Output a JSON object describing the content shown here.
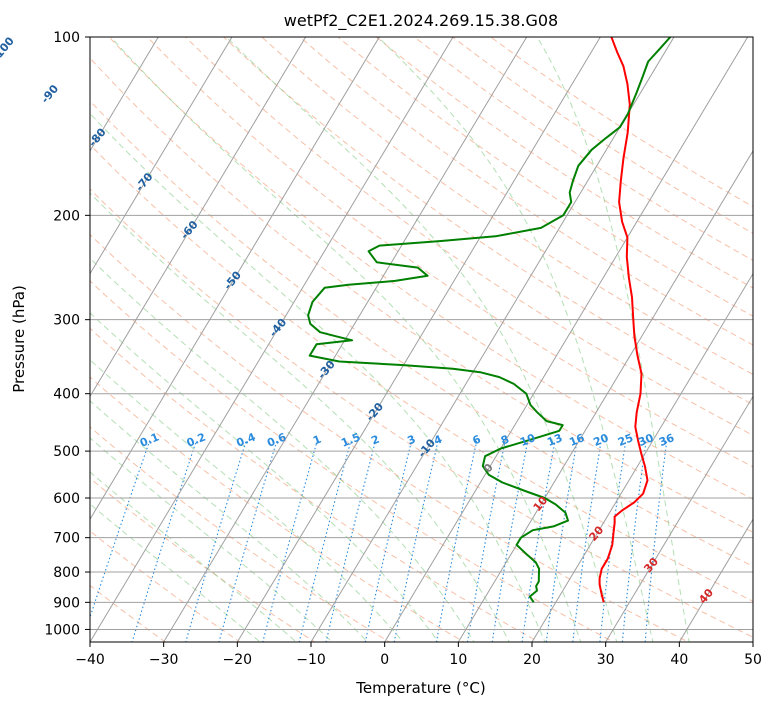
{
  "chart_data": {
    "type": "line",
    "title": "wetPf2_C2E1.2024.269.15.38.G08",
    "xlabel": "Temperature (°C)",
    "ylabel": "Pressure (hPa)",
    "xlim": [
      -40,
      50
    ],
    "ylim": [
      1050,
      100
    ],
    "y_scale": "log",
    "grid": true,
    "x_ticks": [
      "−40",
      "−30",
      "−20",
      "−10",
      "0",
      "10",
      "20",
      "30",
      "40",
      "50"
    ],
    "y_ticks": [
      "100",
      "200",
      "300",
      "400",
      "500",
      "600",
      "700",
      "800",
      "900",
      "1000"
    ],
    "isotherm_labels": [
      "-100",
      "-90",
      "-80",
      "-70",
      "-60",
      "-50",
      "-40",
      "-30",
      "-20",
      "-10",
      "0",
      "10",
      "20",
      "30",
      "40"
    ],
    "mixing_ratio_labels": [
      "0.1",
      "0.2",
      "0.4",
      "0.6",
      "1",
      "1.5",
      "2",
      "3",
      "4",
      "6",
      "8",
      "10",
      "13",
      "16",
      "20",
      "25",
      "30",
      "36"
    ],
    "series": [
      {
        "color": "#ff0000",
        "points": [
          [
            26.5,
            900
          ],
          [
            25.5,
            870
          ],
          [
            24.5,
            840
          ],
          [
            24.0,
            820
          ],
          [
            23.5,
            790
          ],
          [
            23.5,
            760
          ],
          [
            23.0,
            720
          ],
          [
            22.5,
            700
          ],
          [
            22.0,
            680
          ],
          [
            21.5,
            660
          ],
          [
            21.0,
            645
          ],
          [
            21.5,
            630
          ],
          [
            22.5,
            610
          ],
          [
            23.0,
            590
          ],
          [
            22.5,
            560
          ],
          [
            21.0,
            530
          ],
          [
            19.5,
            505
          ],
          [
            18.0,
            480
          ],
          [
            16.5,
            455
          ],
          [
            15.5,
            430
          ],
          [
            14.5,
            400
          ],
          [
            13.0,
            370
          ],
          [
            11.0,
            345
          ],
          [
            9.0,
            320
          ],
          [
            7.5,
            300
          ],
          [
            5.5,
            275
          ],
          [
            3.5,
            255
          ],
          [
            1.5,
            235
          ],
          [
            0.0,
            218
          ],
          [
            -2.0,
            205
          ],
          [
            -4.0,
            190
          ],
          [
            -5.5,
            175
          ],
          [
            -7.0,
            160
          ],
          [
            -8.5,
            145
          ],
          [
            -10.5,
            130
          ],
          [
            -12.5,
            120
          ],
          [
            -14.5,
            112
          ],
          [
            -16.5,
            106
          ],
          [
            -18.5,
            100
          ]
        ]
      },
      {
        "color": "#008000",
        "points": [
          [
            17.0,
            900
          ],
          [
            16.0,
            880
          ],
          [
            16.5,
            860
          ],
          [
            16.0,
            845
          ],
          [
            16.0,
            830
          ],
          [
            15.5,
            810
          ],
          [
            15.0,
            790
          ],
          [
            14.0,
            770
          ],
          [
            12.0,
            745
          ],
          [
            10.0,
            720
          ],
          [
            10.0,
            700
          ],
          [
            11.0,
            680
          ],
          [
            13.5,
            670
          ],
          [
            15.0,
            655
          ],
          [
            14.0,
            635
          ],
          [
            12.0,
            615
          ],
          [
            10.0,
            600
          ],
          [
            7.0,
            585
          ],
          [
            3.0,
            565
          ],
          [
            0.5,
            548
          ],
          [
            -1.0,
            530
          ],
          [
            -1.5,
            510
          ],
          [
            0.0,
            495
          ],
          [
            3.0,
            480
          ],
          [
            6.5,
            462
          ],
          [
            6.5,
            452
          ],
          [
            4.0,
            445
          ],
          [
            2.0,
            430
          ],
          [
            0.5,
            418
          ],
          [
            -1.0,
            400
          ],
          [
            -3.5,
            385
          ],
          [
            -6.0,
            375
          ],
          [
            -9.0,
            368
          ],
          [
            -13.0,
            363
          ],
          [
            -20.0,
            358
          ],
          [
            -29.0,
            353
          ],
          [
            -33.5,
            345
          ],
          [
            -33.5,
            330
          ],
          [
            -29.0,
            325
          ],
          [
            -31.5,
            320
          ],
          [
            -34.0,
            315
          ],
          [
            -36.0,
            305
          ],
          [
            -37.0,
            295
          ],
          [
            -37.5,
            280
          ],
          [
            -37.0,
            265
          ],
          [
            -34.0,
            262
          ],
          [
            -28.0,
            258
          ],
          [
            -24.0,
            253
          ],
          [
            -26.0,
            245
          ],
          [
            -32.0,
            240
          ],
          [
            -34.0,
            230
          ],
          [
            -33.0,
            225
          ],
          [
            -25.0,
            221
          ],
          [
            -18.0,
            217
          ],
          [
            -12.5,
            210
          ],
          [
            -10.5,
            200
          ],
          [
            -10.5,
            190
          ],
          [
            -11.5,
            183
          ],
          [
            -12.0,
            175
          ],
          [
            -12.5,
            165
          ],
          [
            -12.0,
            155
          ],
          [
            -11.0,
            148
          ],
          [
            -10.0,
            142
          ],
          [
            -10.0,
            135
          ],
          [
            -10.5,
            125
          ],
          [
            -11.0,
            117
          ],
          [
            -11.5,
            110
          ],
          [
            -11.0,
            105
          ],
          [
            -10.5,
            100
          ]
        ]
      }
    ]
  }
}
